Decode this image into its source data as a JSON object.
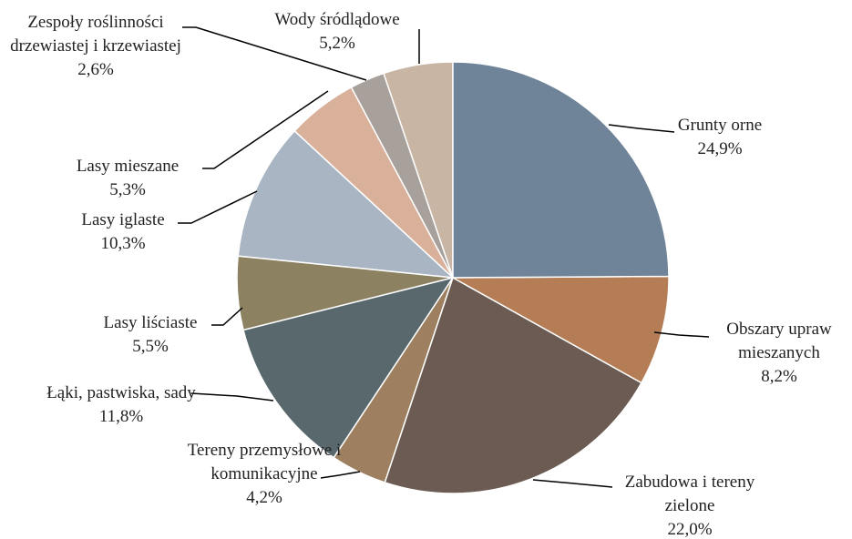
{
  "chart_data": {
    "type": "pie",
    "categories": [
      "Grunty orne",
      "Obszary upraw mieszanych",
      "Zabudowa i tereny zielone",
      "Tereny przemysłowe i komunikacyjne",
      "Łąki, pastwiska, sady",
      "Lasy liściaste",
      "Lasy iglaste",
      "Lasy mieszane",
      "Zespoły roślinności drzewiastej i krzewiastej",
      "Wody śródlądowe"
    ],
    "values": [
      24.9,
      8.2,
      22.0,
      4.2,
      11.8,
      5.5,
      10.3,
      5.3,
      2.6,
      5.2
    ],
    "value_labels": [
      "24,9%",
      "8,2%",
      "22,0%",
      "4,2%",
      "11,8%",
      "5,5%",
      "10,3%",
      "5,3%",
      "2,6%",
      "5,2%"
    ],
    "colors": [
      "#6f8499",
      "#b57d55",
      "#6b5b52",
      "#9e8060",
      "#58686c",
      "#8c8262",
      "#a9b5c3",
      "#d9b09a",
      "#a8a09a",
      "#c9b5a3"
    ]
  }
}
